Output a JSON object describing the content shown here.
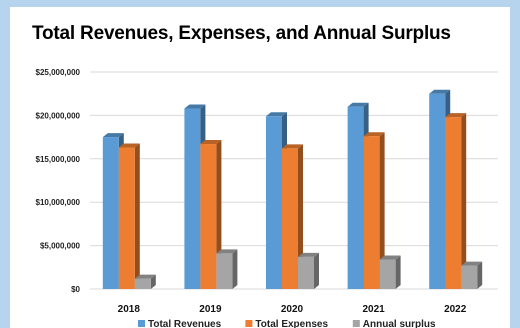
{
  "chart_data": {
    "type": "bar",
    "title": "Total Revenues, Expenses, and Annual Surplus",
    "categories": [
      "2018",
      "2019",
      "2020",
      "2021",
      "2022"
    ],
    "series": [
      {
        "name": "Total Revenues",
        "color": "#5b9bd5",
        "values": [
          17500000,
          20800000,
          19900000,
          21000000,
          22500000
        ]
      },
      {
        "name": "Total Expenses",
        "color": "#ed7d31",
        "values": [
          16300000,
          16700000,
          16200000,
          17600000,
          19800000
        ]
      },
      {
        "name": "Annual surplus",
        "color": "#a5a5a5",
        "values": [
          1200000,
          4100000,
          3700000,
          3400000,
          2700000
        ]
      }
    ],
    "y_ticks": [
      "$0",
      "$5,000,000",
      "$10,000,000",
      "$15,000,000",
      "$20,000,000",
      "$25,000,000"
    ],
    "ylim": [
      0,
      25000000
    ],
    "grid": true,
    "legend_position": "bottom",
    "bar_style": "3d"
  }
}
